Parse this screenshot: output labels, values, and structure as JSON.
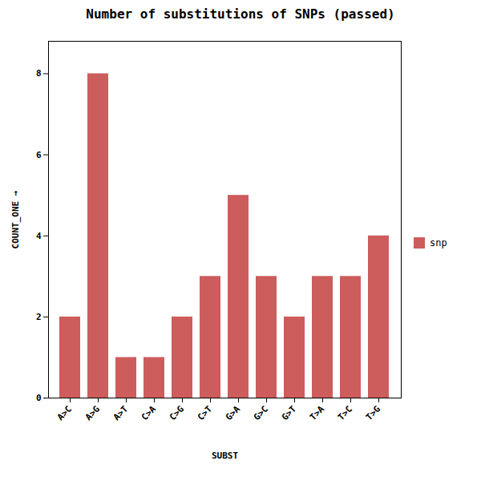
{
  "chart_data": {
    "type": "bar",
    "title": "Number of substitutions of SNPs (passed)",
    "xlabel": "SUBST",
    "ylabel": "COUNT_ONE",
    "categories": [
      "A>C",
      "A>G",
      "A>T",
      "C>A",
      "C>G",
      "C>T",
      "G>A",
      "G>C",
      "G>T",
      "T>A",
      "T>C",
      "T>G"
    ],
    "series": [
      {
        "name": "snp",
        "color": "#cd5c5c",
        "values": [
          2,
          8,
          1,
          1,
          2,
          3,
          5,
          3,
          2,
          3,
          3,
          4
        ]
      }
    ],
    "ylim": [
      0,
      8.8
    ],
    "yticks": [
      0,
      2,
      4,
      6,
      8
    ],
    "grid": false,
    "legend": "right"
  }
}
